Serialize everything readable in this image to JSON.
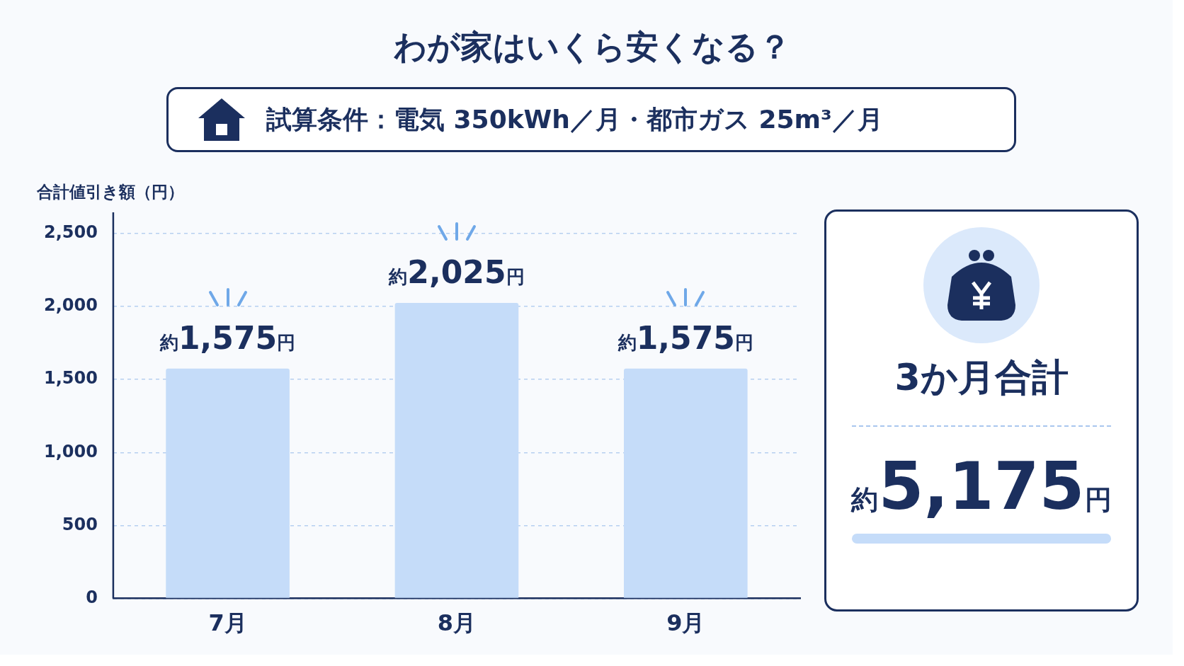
{
  "chart_data": {
    "type": "bar",
    "title": "わが家はいくら安くなる？",
    "subtitle": "試算条件：電気 350kWh／月・都市ガス 25m³／月",
    "ylabel": "合計値引き額（円）",
    "categories": [
      "7月",
      "8月",
      "9月"
    ],
    "values": [
      1575,
      2025,
      1575
    ],
    "value_labels": [
      "約1,575円",
      "約2,025円",
      "約1,575円"
    ],
    "color": "#c5dcf9",
    "ylim": [
      0,
      2500
    ],
    "yticks": [
      0,
      500,
      {
        "value": 1000,
        "label": "1,000"
      },
      {
        "value": 1500,
        "label": "1,500"
      },
      {
        "value": 2000,
        "label": "2,000"
      },
      {
        "value": 2500,
        "label": "2,500"
      }
    ],
    "grid": "y",
    "legend": false,
    "annotations": [
      "3か月合計",
      "約5,175円"
    ]
  }
}
